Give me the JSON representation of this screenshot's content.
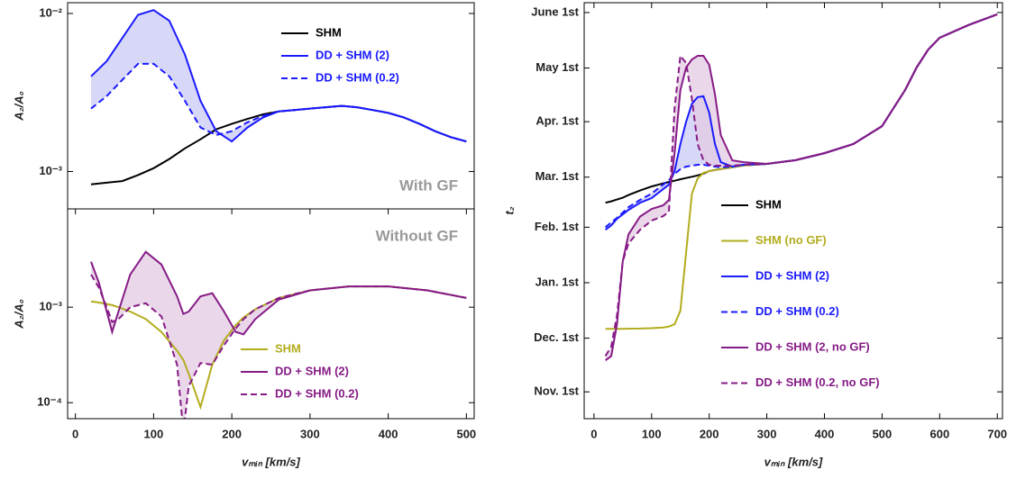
{
  "chart_data": [
    {
      "type": "line",
      "log_y": true,
      "ylabel": "A₂/A₀",
      "annotation": "With GF",
      "xlim": [
        -10,
        510
      ],
      "ylim": [
        0.00058,
        0.0117
      ],
      "yticks": [
        {
          "value": 0.01,
          "label": "10⁻²"
        },
        {
          "value": 0.001,
          "label": "10⁻³"
        }
      ],
      "x": [
        20,
        40,
        60,
        80,
        100,
        120,
        140,
        160,
        180,
        200,
        220,
        240,
        260,
        280,
        300,
        320,
        340,
        360,
        380,
        400,
        420,
        440,
        460,
        480,
        500
      ],
      "series": [
        {
          "name": "SHM",
          "color": "#000000",
          "linestyle": "solid",
          "values": [
            0.00083,
            0.00085,
            0.00087,
            0.00095,
            0.00105,
            0.0012,
            0.0014,
            0.0016,
            0.00185,
            0.002,
            0.00215,
            0.0023,
            0.0024,
            0.00245,
            0.0025,
            0.00255,
            0.0026,
            0.00255,
            0.00245,
            0.00235,
            0.0022,
            0.002,
            0.0018,
            0.00165,
            0.00155
          ]
        },
        {
          "name": "DD + SHM (2)",
          "color": "#1a1aff",
          "linestyle": "solid",
          "band_color": "#c9c9f5",
          "values": [
            0.004,
            0.005,
            0.007,
            0.0098,
            0.0105,
            0.009,
            0.0055,
            0.0028,
            0.0018,
            0.00155,
            0.0019,
            0.0022,
            0.0024,
            0.00245,
            0.0025,
            0.00255,
            0.0026,
            0.00255,
            0.00245,
            0.00235,
            0.0022,
            0.002,
            0.0018,
            0.00165,
            0.00155
          ]
        },
        {
          "name": "DD + SHM (0.2)",
          "color": "#1a1aff",
          "linestyle": "dashed",
          "values": [
            0.0025,
            0.003,
            0.0038,
            0.0048,
            0.0048,
            0.004,
            0.0028,
            0.0019,
            0.0017,
            0.0018,
            0.00205,
            0.00225,
            0.0024,
            0.00245,
            0.0025,
            0.00255,
            0.0026,
            0.00255,
            0.00245,
            0.00235,
            0.0022,
            0.002,
            0.0018,
            0.00165,
            0.00155
          ]
        }
      ]
    },
    {
      "type": "line",
      "log_y": true,
      "ylabel": "A₂/A₀",
      "xlabel": "vₘᵢₙ [km/s]",
      "annotation": "Without GF",
      "xlim": [
        -10,
        510
      ],
      "ylim": [
        6.8e-05,
        0.0107
      ],
      "xticks": [
        0,
        100,
        200,
        300,
        400,
        500
      ],
      "yticks": [
        {
          "value": 0.001,
          "label": "10⁻³"
        },
        {
          "value": 0.0001,
          "label": "10⁻⁴"
        }
      ],
      "x": [
        20,
        30,
        40,
        47,
        55,
        70,
        90,
        110,
        130,
        138,
        145,
        160,
        175,
        190,
        205,
        215,
        230,
        260,
        300,
        350,
        400,
        450,
        500
      ],
      "series": [
        {
          "name": "SHM",
          "color": "#b3ac1e",
          "linestyle": "solid",
          "values": [
            0.00115,
            0.00112,
            0.00108,
            0.00105,
            0.001,
            0.0009,
            0.00075,
            0.00055,
            0.00035,
            0.00028,
            0.0002,
            9e-05,
            0.00025,
            0.00045,
            0.00065,
            0.00078,
            0.00095,
            0.00125,
            0.0015,
            0.00165,
            0.00165,
            0.0015,
            0.00125
          ]
        },
        {
          "name": "DD + SHM (2)",
          "color": "#861b86",
          "linestyle": "solid",
          "band_color": "#e3cbe3",
          "values": [
            0.003,
            0.0018,
            0.0009,
            0.00055,
            0.0009,
            0.0022,
            0.0038,
            0.0028,
            0.0013,
            0.00085,
            0.0009,
            0.0013,
            0.0014,
            0.0009,
            0.00055,
            0.00052,
            0.00075,
            0.0012,
            0.0015,
            0.00165,
            0.00165,
            0.0015,
            0.00125
          ]
        },
        {
          "name": "DD + SHM (0.2)",
          "color": "#861b86",
          "linestyle": "dashed",
          "values": [
            0.0022,
            0.0016,
            0.001,
            0.0007,
            0.00075,
            0.001,
            0.0011,
            0.0008,
            0.00025,
            5e-05,
            0.00015,
            0.00026,
            0.00025,
            0.0004,
            0.0006,
            0.00075,
            0.00095,
            0.00125,
            0.0015,
            0.00165,
            0.00165,
            0.0015,
            0.00125
          ]
        }
      ]
    },
    {
      "type": "line",
      "log_y": false,
      "ylabel": "t₂",
      "xlabel": "vₘᵢₙ [km/s]",
      "xlim": [
        -17,
        709
      ],
      "ylim": [
        290,
        522.5
      ],
      "xticks": [
        0,
        100,
        200,
        300,
        400,
        500,
        600,
        700
      ],
      "yticks": [
        {
          "value": 305,
          "label": "Nov. 1st"
        },
        {
          "value": 335,
          "label": "Dec. 1st"
        },
        {
          "value": 366,
          "label": "Jan. 1st"
        },
        {
          "value": 397,
          "label": "Feb. 1st"
        },
        {
          "value": 425,
          "label": "Mar. 1st"
        },
        {
          "value": 456,
          "label": "Apr. 1st"
        },
        {
          "value": 486,
          "label": "May 1st"
        },
        {
          "value": 517,
          "label": "June 1st"
        }
      ],
      "x": [
        20,
        30,
        40,
        50,
        60,
        80,
        100,
        120,
        130,
        140,
        150,
        160,
        170,
        180,
        190,
        200,
        210,
        220,
        240,
        260,
        300,
        350,
        400,
        450,
        500,
        520,
        540,
        560,
        580,
        600,
        650,
        700
      ],
      "series": [
        {
          "name": "SHM",
          "color": "#000000",
          "linestyle": "solid",
          "values": [
            410.7,
            411.5,
            412.5,
            413.5,
            415,
            417.5,
            419.8,
            421.5,
            422.3,
            423,
            423.8,
            424.5,
            425.2,
            426,
            427,
            428.4,
            429,
            429.5,
            430.5,
            431.5,
            432.4,
            434.5,
            438.4,
            443.5,
            453.5,
            463.6,
            473.7,
            486.3,
            496.3,
            502.9,
            510,
            516
          ]
        },
        {
          "name": "SHM (no GF)",
          "color": "#b3ac1e",
          "linestyle": "solid",
          "values": [
            340.2,
            340.2,
            340.2,
            340.2,
            340.3,
            340.4,
            340.6,
            341,
            341.5,
            342.8,
            350.3,
            383,
            415.8,
            424.3,
            427.4,
            428.4,
            429,
            429.5,
            430.5,
            431.5,
            432.4,
            434.5,
            438.4,
            443.5,
            453.5,
            463.6,
            473.7,
            486.3,
            496.3,
            502.9,
            510,
            516
          ]
        },
        {
          "name": "DD + SHM (2)",
          "color": "#1a1aff",
          "linestyle": "solid",
          "band_color": "#c9c9f5",
          "values": [
            395.6,
            398,
            401.7,
            404.2,
            406.7,
            410.7,
            413.3,
            418.3,
            420.8,
            428.4,
            443.5,
            456,
            466,
            469.7,
            470.2,
            461,
            443.5,
            433.4,
            430.9,
            431.9,
            432.4,
            434.5,
            438.4,
            443.5,
            453.5,
            463.6,
            473.7,
            486.3,
            496.3,
            502.9,
            510,
            516
          ]
        },
        {
          "name": "DD + SHM (0.2)",
          "color": "#1a1aff",
          "linestyle": "dashed",
          "values": [
            397,
            399.7,
            402.2,
            405.2,
            408.2,
            412.3,
            415.8,
            420.8,
            423.3,
            426.9,
            429.4,
            430.9,
            431.4,
            431.9,
            431.9,
            431.4,
            430.9,
            430.5,
            430.9,
            431.9,
            432.4,
            434.5,
            438.4,
            443.5,
            453.5,
            463.6,
            473.7,
            486.3,
            496.3,
            502.9,
            510,
            516
          ]
        },
        {
          "name": "DD + SHM (2, no GF)",
          "color": "#861b86",
          "linestyle": "solid",
          "band_color": "#e3cbe3",
          "values": [
            322.6,
            325,
            342.8,
            378,
            393,
            403,
            407.2,
            409.2,
            412.3,
            438.4,
            473.7,
            486.3,
            490.8,
            492.8,
            492.8,
            487.8,
            471.2,
            448.5,
            434.4,
            433.4,
            432.4,
            434.5,
            438.4,
            443.5,
            453.5,
            463.6,
            473.7,
            486.3,
            496.3,
            502.9,
            510,
            516
          ]
        },
        {
          "name": "DD + SHM (0.2, no GF)",
          "color": "#861b86",
          "linestyle": "dashed",
          "values": [
            325.1,
            330.2,
            347.8,
            378,
            388,
            395.6,
            400.7,
            403.2,
            405.7,
            463.6,
            492.8,
            488.8,
            468.7,
            443.5,
            434.4,
            431.9,
            431.4,
            431.4,
            431.4,
            431.9,
            432.4,
            434.5,
            438.4,
            443.5,
            453.5,
            463.6,
            473.7,
            486.3,
            496.3,
            502.9,
            510,
            516
          ]
        }
      ]
    }
  ]
}
